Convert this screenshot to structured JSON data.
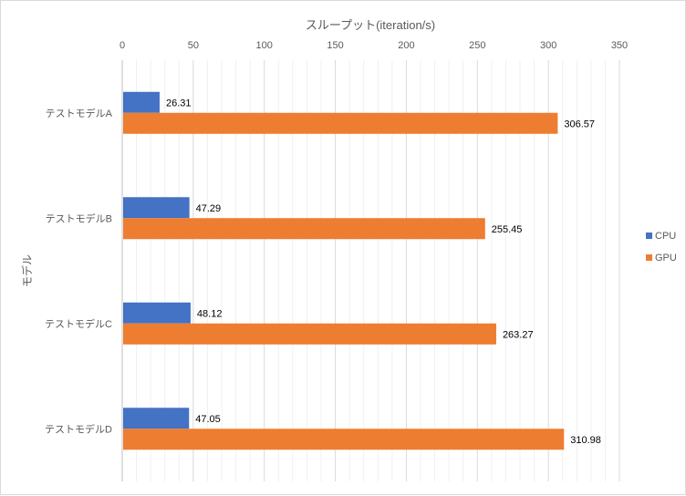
{
  "chart_data": {
    "type": "bar",
    "orientation": "horizontal",
    "categories": [
      "テストモデルA",
      "テストモデルB",
      "テストモデルC",
      "テストモデルD"
    ],
    "series": [
      {
        "name": "CPU",
        "values": [
          26.31,
          47.29,
          48.12,
          47.05
        ],
        "color": "#4472c4"
      },
      {
        "name": "GPU",
        "values": [
          306.57,
          255.45,
          263.27,
          310.98
        ],
        "color": "#ed7d31"
      }
    ],
    "data_labels": {
      "CPU": [
        "26.31",
        "47.29",
        "48.12",
        "47.05"
      ],
      "GPU": [
        "306.57",
        "255.45",
        "263.27",
        "310.98"
      ]
    },
    "xlabel": "スループット(iteration/s)",
    "ylabel": "モデル",
    "xlim": [
      0,
      350
    ],
    "xticks": [
      "0",
      "50",
      "100",
      "150",
      "200",
      "250",
      "300",
      "350"
    ],
    "grid": "major and minor vertical",
    "legend": "right"
  }
}
